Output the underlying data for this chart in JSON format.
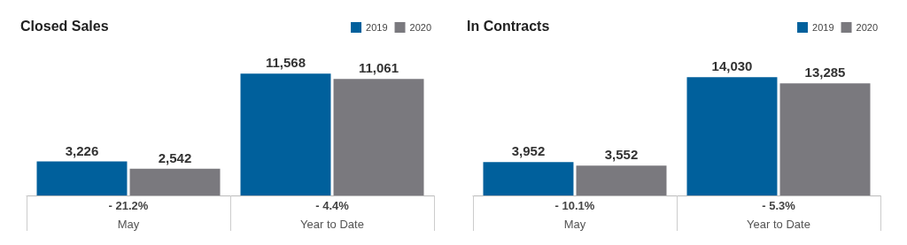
{
  "chart_data": [
    {
      "type": "bar",
      "title": "Closed Sales",
      "categories": [
        "May",
        "Year to Date"
      ],
      "series": [
        {
          "name": "2019",
          "color": "#00609c",
          "values": [
            3226,
            11568
          ],
          "value_labels": [
            "3,226",
            "11,568"
          ]
        },
        {
          "name": "2020",
          "color": "#7a797e",
          "values": [
            2542,
            11061
          ],
          "value_labels": [
            "2,542",
            "11,061"
          ]
        }
      ],
      "legend": "top right",
      "annotations": [
        "- 21.2%",
        "- 4.4%"
      ]
    },
    {
      "type": "bar",
      "title": "In Contracts",
      "categories": [
        "May",
        "Year to Date"
      ],
      "series": [
        {
          "name": "2019",
          "color": "#00609c",
          "values": [
            3952,
            14030
          ],
          "value_labels": [
            "3,952",
            "14,030"
          ]
        },
        {
          "name": "2020",
          "color": "#7a797e",
          "values": [
            3552,
            13285
          ],
          "value_labels": [
            "3,552",
            "13,285"
          ]
        }
      ],
      "legend": "top right",
      "annotations": [
        "- 10.1%",
        "- 5.3%"
      ]
    }
  ]
}
